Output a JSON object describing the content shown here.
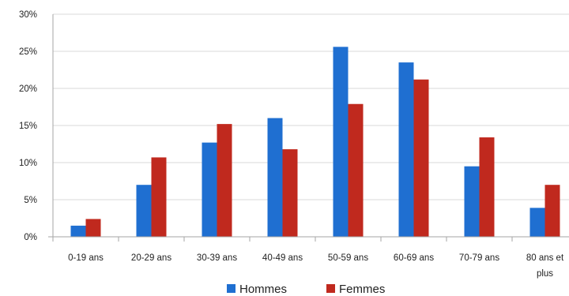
{
  "chart_data": {
    "type": "bar",
    "categories": [
      "0-19 ans",
      "20-29 ans",
      "30-39 ans",
      "40-49 ans",
      "50-59 ans",
      "60-69 ans",
      "70-79 ans",
      "80 ans et plus"
    ],
    "series": [
      {
        "name": "Hommes",
        "color": "#1f6fd1",
        "values": [
          1.5,
          7.0,
          12.7,
          16.0,
          25.6,
          23.5,
          9.5,
          3.9
        ]
      },
      {
        "name": "Femmes",
        "color": "#c0291e",
        "values": [
          2.4,
          10.7,
          15.2,
          11.8,
          17.9,
          21.2,
          13.4,
          7.0
        ]
      }
    ],
    "ylim": [
      0,
      30
    ],
    "yticks": [
      "0%",
      "5%",
      "10%",
      "15%",
      "20%",
      "25%",
      "30%"
    ],
    "ytick_values": [
      0,
      5,
      10,
      15,
      20,
      25,
      30
    ],
    "grid": true,
    "legend_position": "bottom-center"
  }
}
